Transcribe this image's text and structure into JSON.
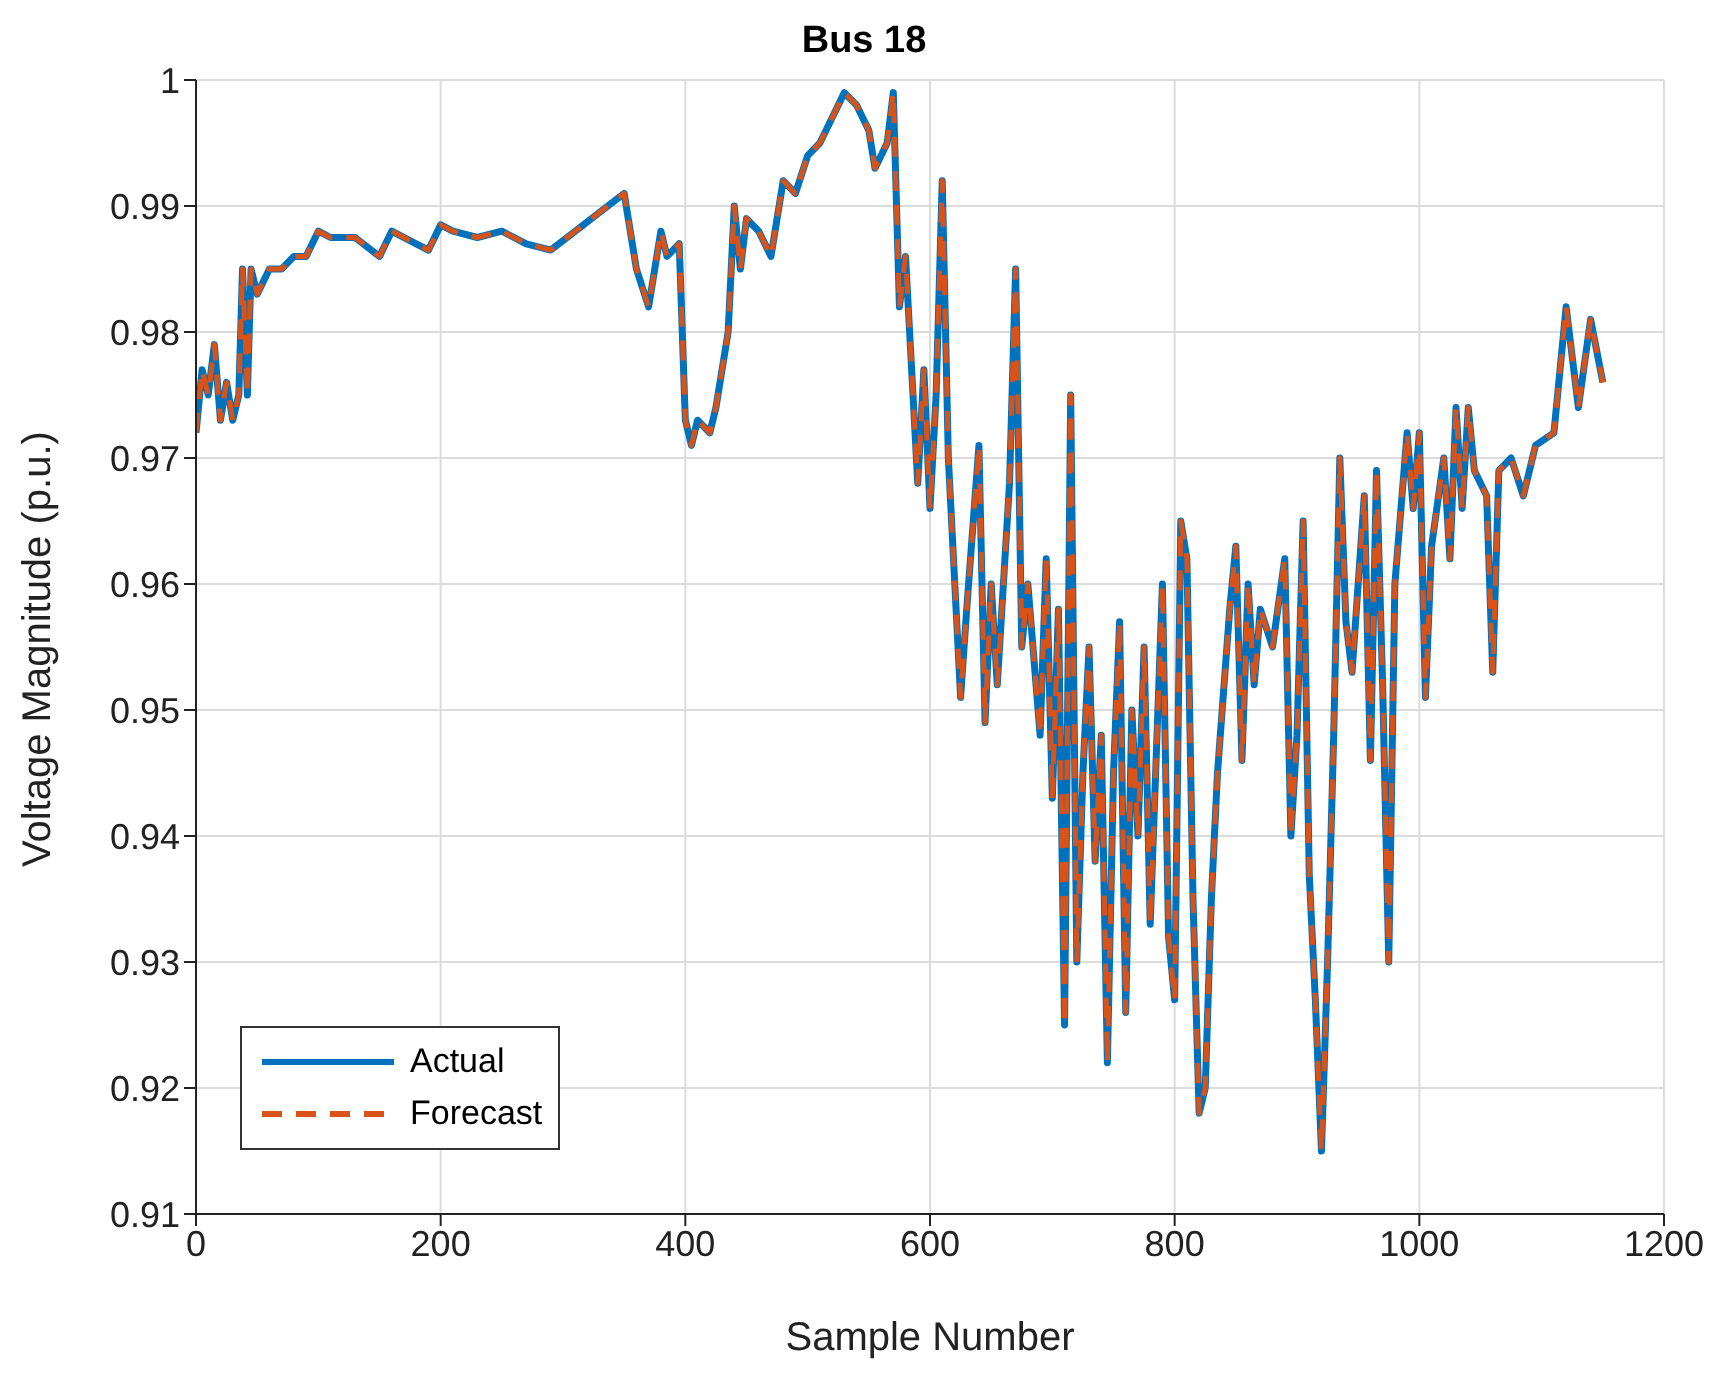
{
  "chart_data": {
    "type": "line",
    "title": "Bus 18",
    "xlabel": "Sample Number",
    "ylabel": "Voltage Magnitude (p.u.)",
    "x": [
      0,
      5,
      10,
      15,
      20,
      25,
      30,
      35,
      38,
      42,
      45,
      50,
      60,
      70,
      80,
      90,
      100,
      110,
      130,
      150,
      160,
      180,
      190,
      200,
      210,
      230,
      250,
      270,
      290,
      310,
      330,
      350,
      360,
      370,
      380,
      385,
      395,
      400,
      405,
      410,
      420,
      425,
      435,
      440,
      445,
      450,
      460,
      470,
      480,
      490,
      500,
      510,
      520,
      530,
      540,
      550,
      555,
      565,
      570,
      575,
      580,
      590,
      595,
      600,
      605,
      610,
      615,
      625,
      630,
      640,
      645,
      650,
      655,
      665,
      670,
      675,
      680,
      690,
      695,
      700,
      705,
      710,
      715,
      720,
      725,
      730,
      735,
      740,
      745,
      750,
      755,
      760,
      765,
      770,
      775,
      780,
      790,
      795,
      800,
      805,
      810,
      815,
      820,
      825,
      830,
      835,
      845,
      850,
      855,
      860,
      865,
      870,
      880,
      890,
      895,
      900,
      905,
      910,
      915,
      920,
      925,
      930,
      935,
      940,
      945,
      955,
      960,
      965,
      970,
      975,
      980,
      990,
      995,
      1000,
      1005,
      1010,
      1020,
      1025,
      1030,
      1035,
      1040,
      1045,
      1055,
      1060,
      1065,
      1075,
      1085,
      1095,
      1110,
      1120,
      1130,
      1140,
      1150
    ],
    "series": [
      {
        "name": "Actual",
        "color": "#0072bd",
        "line_style": "solid",
        "values": [
          0.972,
          0.977,
          0.975,
          0.979,
          0.973,
          0.976,
          0.973,
          0.975,
          0.985,
          0.975,
          0.985,
          0.983,
          0.985,
          0.985,
          0.986,
          0.986,
          0.988,
          0.9875,
          0.9875,
          0.986,
          0.988,
          0.987,
          0.9865,
          0.9885,
          0.988,
          0.9875,
          0.988,
          0.987,
          0.9865,
          0.988,
          0.9895,
          0.991,
          0.985,
          0.982,
          0.988,
          0.986,
          0.987,
          0.973,
          0.971,
          0.973,
          0.972,
          0.974,
          0.98,
          0.99,
          0.985,
          0.989,
          0.988,
          0.986,
          0.992,
          0.991,
          0.994,
          0.995,
          0.997,
          0.999,
          0.998,
          0.996,
          0.993,
          0.995,
          0.999,
          0.982,
          0.986,
          0.968,
          0.977,
          0.966,
          0.975,
          0.992,
          0.97,
          0.951,
          0.958,
          0.971,
          0.949,
          0.96,
          0.952,
          0.968,
          0.985,
          0.955,
          0.96,
          0.948,
          0.962,
          0.943,
          0.958,
          0.925,
          0.975,
          0.93,
          0.945,
          0.955,
          0.938,
          0.948,
          0.922,
          0.945,
          0.957,
          0.926,
          0.95,
          0.94,
          0.955,
          0.933,
          0.96,
          0.932,
          0.927,
          0.965,
          0.962,
          0.935,
          0.918,
          0.92,
          0.935,
          0.945,
          0.958,
          0.963,
          0.946,
          0.96,
          0.952,
          0.958,
          0.955,
          0.962,
          0.94,
          0.948,
          0.965,
          0.937,
          0.927,
          0.915,
          0.93,
          0.948,
          0.97,
          0.957,
          0.953,
          0.967,
          0.946,
          0.969,
          0.952,
          0.93,
          0.96,
          0.972,
          0.966,
          0.972,
          0.951,
          0.963,
          0.97,
          0.962,
          0.974,
          0.966,
          0.974,
          0.969,
          0.967,
          0.953,
          0.969,
          0.97,
          0.967,
          0.971,
          0.972,
          0.982,
          0.974,
          0.981,
          0.976
        ]
      },
      {
        "name": "Forecast",
        "color": "#d95319",
        "line_style": "dashed",
        "values": [
          0.972,
          0.977,
          0.975,
          0.979,
          0.973,
          0.976,
          0.973,
          0.975,
          0.985,
          0.975,
          0.985,
          0.983,
          0.985,
          0.985,
          0.986,
          0.986,
          0.988,
          0.9875,
          0.9875,
          0.986,
          0.988,
          0.987,
          0.9865,
          0.9885,
          0.988,
          0.9875,
          0.988,
          0.987,
          0.9865,
          0.988,
          0.9895,
          0.991,
          0.985,
          0.982,
          0.988,
          0.986,
          0.987,
          0.973,
          0.971,
          0.973,
          0.972,
          0.974,
          0.98,
          0.99,
          0.985,
          0.989,
          0.988,
          0.986,
          0.992,
          0.991,
          0.994,
          0.995,
          0.997,
          0.999,
          0.998,
          0.996,
          0.993,
          0.995,
          0.999,
          0.982,
          0.986,
          0.968,
          0.977,
          0.966,
          0.975,
          0.992,
          0.97,
          0.951,
          0.958,
          0.971,
          0.949,
          0.96,
          0.952,
          0.968,
          0.985,
          0.955,
          0.96,
          0.948,
          0.962,
          0.943,
          0.958,
          0.925,
          0.975,
          0.93,
          0.945,
          0.955,
          0.938,
          0.948,
          0.922,
          0.945,
          0.957,
          0.926,
          0.95,
          0.94,
          0.955,
          0.933,
          0.96,
          0.932,
          0.927,
          0.965,
          0.962,
          0.935,
          0.918,
          0.92,
          0.935,
          0.945,
          0.958,
          0.963,
          0.946,
          0.96,
          0.952,
          0.958,
          0.955,
          0.962,
          0.94,
          0.948,
          0.965,
          0.937,
          0.927,
          0.915,
          0.93,
          0.948,
          0.97,
          0.957,
          0.953,
          0.967,
          0.946,
          0.969,
          0.952,
          0.93,
          0.96,
          0.972,
          0.966,
          0.972,
          0.951,
          0.963,
          0.97,
          0.962,
          0.974,
          0.966,
          0.974,
          0.969,
          0.967,
          0.953,
          0.969,
          0.97,
          0.967,
          0.971,
          0.972,
          0.982,
          0.974,
          0.981,
          0.976
        ]
      }
    ],
    "xlim": [
      0,
      1200
    ],
    "xticks": [
      0,
      200,
      400,
      600,
      800,
      1000,
      1200
    ],
    "ylim": [
      0.91,
      1
    ],
    "yticks": [
      0.91,
      0.92,
      0.93,
      0.94,
      0.95,
      0.96,
      0.97,
      0.98,
      0.99,
      1
    ],
    "grid": true,
    "legend": "bottom left",
    "marker": "none"
  }
}
